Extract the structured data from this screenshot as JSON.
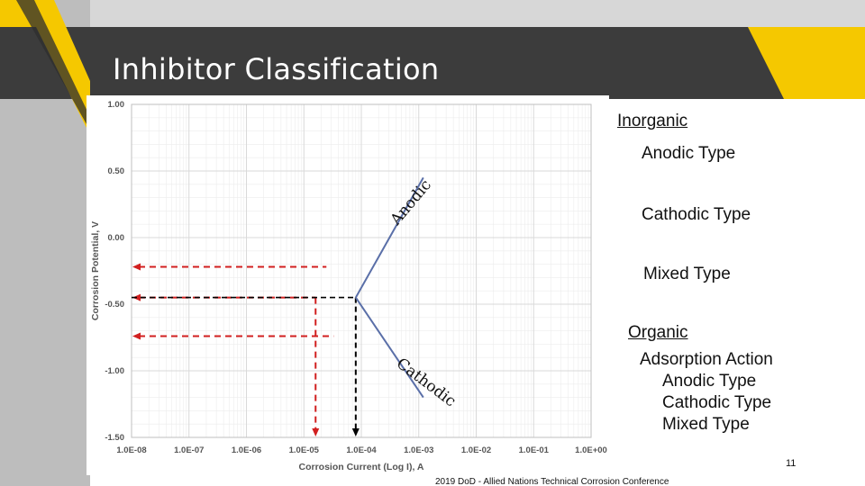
{
  "slide": {
    "title": "Inhibitor Classification",
    "page_number": "11",
    "footer": "2019 DoD - Allied Nations Technical Corrosion Conference"
  },
  "classification": {
    "inorganic_heading": "Inorganic",
    "inorganic_items": [
      "Anodic Type",
      "Cathodic Type",
      "Mixed Type"
    ],
    "organic_heading": "Organic",
    "organic_items": [
      "Adsorption Action",
      "Anodic Type",
      "Cathodic Type",
      "Mixed Type"
    ]
  },
  "chart_data": {
    "type": "line",
    "xlabel": "Corrosion Current (Log I), A",
    "ylabel": "Corrosion Potential, V",
    "x_scale": "log",
    "x_ticks": [
      1e-08,
      1e-07,
      1e-06,
      1e-05,
      0.0001,
      0.001,
      0.01,
      0.1,
      1
    ],
    "x_tick_labels": [
      "1.0E-08",
      "1.0E-07",
      "1.0E-06",
      "1.0E-05",
      "1.0E-04",
      "1.0E-03",
      "1.0E-02",
      "1.0E-01",
      "1.0E+00"
    ],
    "y_ticks": [
      1.0,
      0.5,
      0.0,
      -0.5,
      -1.0,
      -1.5
    ],
    "y_tick_labels": [
      "1.00",
      "0.50",
      "0.00",
      "-0.50",
      "-1.00",
      "-1.50"
    ],
    "ylim": [
      -1.5,
      1.0
    ],
    "xlim": [
      1e-08,
      1
    ],
    "grid": true,
    "series": [
      {
        "name": "Anodic",
        "x": [
          8e-05,
          0.0012
        ],
        "y": [
          -0.45,
          0.45
        ]
      },
      {
        "name": "Cathodic",
        "x": [
          8e-05,
          0.0012
        ],
        "y": [
          -0.45,
          -1.2
        ]
      }
    ],
    "annotations": {
      "anodic_label": "Anodic",
      "cathodic_label": "Cathodic"
    },
    "reference_lines": {
      "red_horizontal_y": [
        -0.22,
        -0.45,
        -0.74
      ],
      "red_vertical_x": [
        1.6e-05
      ],
      "black_horizontal_y": [
        -0.45
      ],
      "black_vertical_x": [
        8e-05
      ]
    },
    "colors": {
      "curve": "#5a6fa8",
      "red": "#d11f1f",
      "black": "#000000",
      "grid": "#d9d9d9"
    }
  }
}
